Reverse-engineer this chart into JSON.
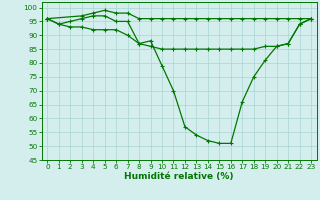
{
  "xlabel": "Humidité relative (%)",
  "xlim": [
    -0.5,
    23.5
  ],
  "ylim": [
    45,
    102
  ],
  "background_color": "#d4eeee",
  "grid_color": "#aad4d4",
  "line_color": "#007700",
  "xticks": [
    0,
    1,
    2,
    3,
    4,
    5,
    6,
    7,
    8,
    9,
    10,
    11,
    12,
    13,
    14,
    15,
    16,
    17,
    18,
    19,
    20,
    21,
    22,
    23
  ],
  "yticks": [
    45,
    50,
    55,
    60,
    65,
    70,
    75,
    80,
    85,
    90,
    95,
    100
  ],
  "series": [
    {
      "x": [
        0,
        1,
        2,
        3,
        4,
        5,
        6,
        7,
        8,
        9,
        10,
        11,
        12,
        13,
        14,
        15,
        16,
        17,
        18,
        19,
        20,
        21,
        22,
        23
      ],
      "y": [
        96,
        94,
        95,
        96,
        97,
        97,
        95,
        95,
        87,
        88,
        79,
        70,
        57,
        54,
        52,
        51,
        51,
        66,
        75,
        81,
        86,
        87,
        94,
        96
      ]
    },
    {
      "x": [
        0,
        3,
        4,
        5,
        6,
        7,
        8,
        9,
        10,
        11,
        12,
        13,
        14,
        15,
        16,
        17,
        18,
        19,
        20,
        21,
        22,
        23
      ],
      "y": [
        96,
        97,
        98,
        99,
        98,
        98,
        96,
        96,
        96,
        96,
        96,
        96,
        96,
        96,
        96,
        96,
        96,
        96,
        96,
        96,
        96,
        96
      ]
    },
    {
      "x": [
        0,
        1,
        2,
        3,
        4,
        5,
        6,
        7,
        8,
        9,
        10,
        11,
        12,
        13,
        14,
        15,
        16,
        17,
        18,
        19,
        20,
        21,
        22,
        23
      ],
      "y": [
        96,
        94,
        93,
        93,
        92,
        92,
        92,
        90,
        87,
        86,
        85,
        85,
        85,
        85,
        85,
        85,
        85,
        85,
        85,
        86,
        86,
        87,
        94,
        96
      ]
    }
  ],
  "tick_fontsize": 5.2,
  "xlabel_fontsize": 6.5,
  "line_width": 0.9,
  "marker_size": 2.5,
  "marker_ew": 0.8
}
